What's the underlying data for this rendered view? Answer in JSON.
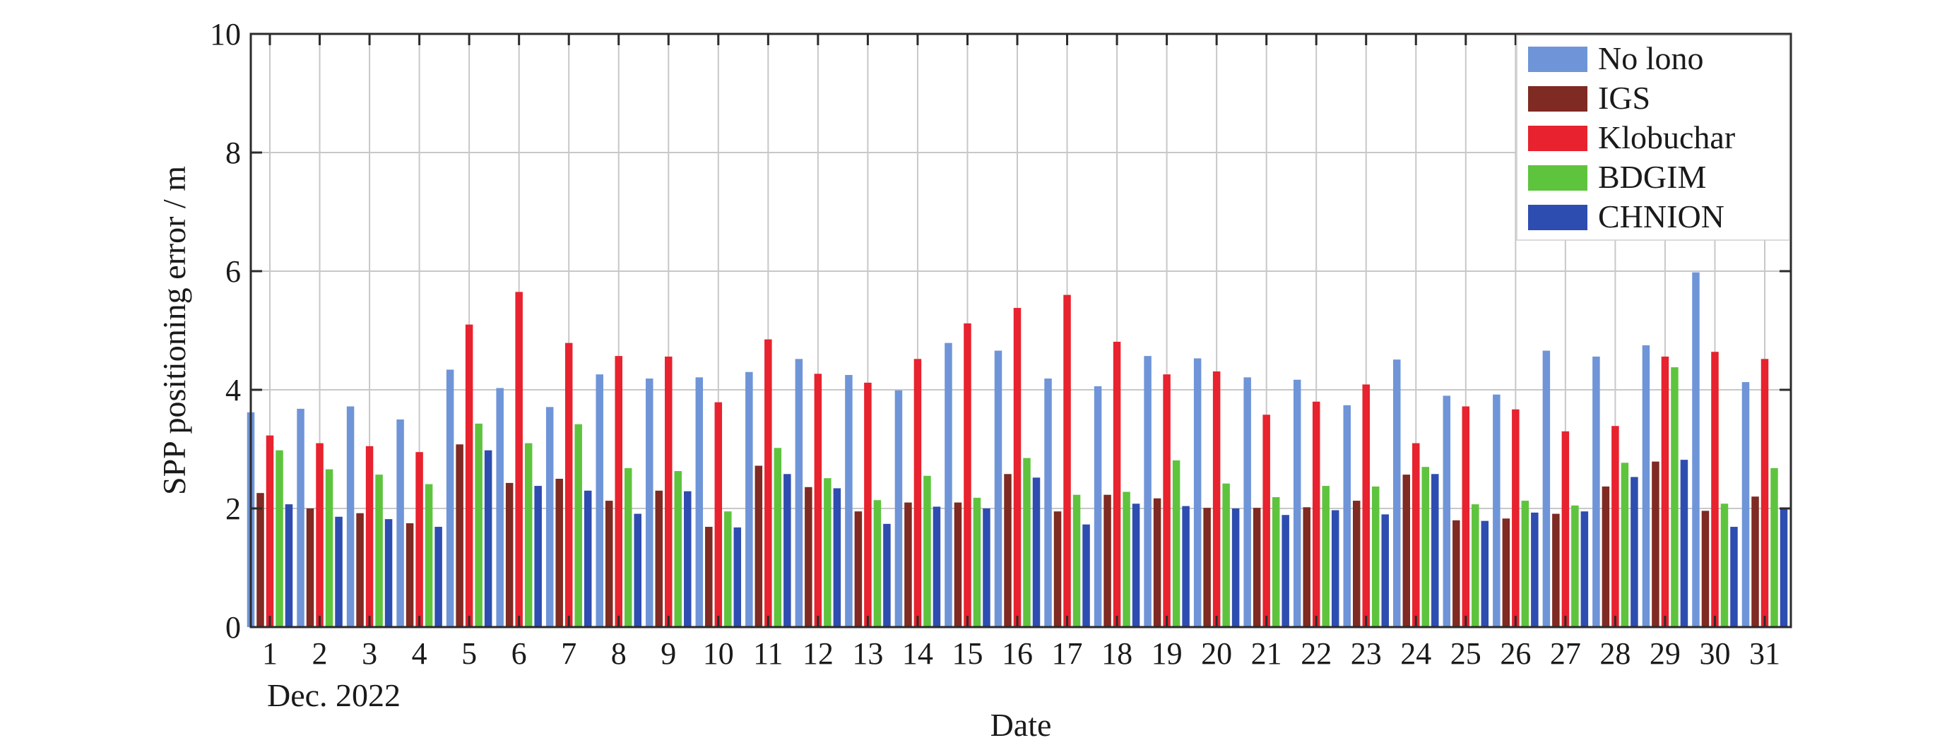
{
  "chart_data": {
    "type": "bar",
    "title": "",
    "xlabel": "Date",
    "ylabel": "SPP positioning error / m",
    "x_sublabel": "Dec. 2022",
    "ylim": [
      0,
      10
    ],
    "yticks": [
      0,
      2,
      4,
      6,
      8,
      10
    ],
    "grid": true,
    "legend_position": "top-right",
    "categories": [
      "1",
      "2",
      "3",
      "4",
      "5",
      "6",
      "7",
      "8",
      "9",
      "10",
      "11",
      "12",
      "13",
      "14",
      "15",
      "16",
      "17",
      "18",
      "19",
      "20",
      "21",
      "22",
      "23",
      "24",
      "25",
      "26",
      "27",
      "28",
      "29",
      "30",
      "31"
    ],
    "series": [
      {
        "name": "No lono",
        "color": "#6f95d8",
        "values": [
          3.62,
          3.68,
          3.72,
          3.5,
          4.34,
          4.03,
          3.71,
          4.26,
          4.19,
          4.21,
          4.3,
          4.52,
          4.25,
          3.99,
          4.79,
          4.66,
          4.19,
          4.06,
          4.57,
          4.53,
          4.21,
          4.17,
          3.74,
          4.51,
          3.9,
          3.92,
          4.66,
          4.56,
          4.75,
          5.98,
          4.13
        ]
      },
      {
        "name": "IGS",
        "color": "#7f2a22",
        "values": [
          2.26,
          2.0,
          1.92,
          1.75,
          3.08,
          2.43,
          2.5,
          2.13,
          2.3,
          1.69,
          2.72,
          2.36,
          1.95,
          2.1,
          2.1,
          2.58,
          1.95,
          2.23,
          2.17,
          2.01,
          2.01,
          2.02,
          2.13,
          2.57,
          1.8,
          1.83,
          1.91,
          2.37,
          2.79,
          1.96,
          2.2
        ]
      },
      {
        "name": "Klobuchar",
        "color": "#e8222e",
        "values": [
          3.23,
          3.1,
          3.05,
          2.95,
          5.1,
          5.65,
          4.79,
          4.57,
          4.56,
          3.79,
          4.85,
          4.27,
          4.12,
          4.52,
          5.12,
          5.38,
          5.6,
          4.81,
          4.26,
          4.31,
          3.58,
          3.8,
          4.09,
          3.1,
          3.72,
          3.67,
          3.3,
          3.39,
          4.56,
          4.64,
          4.52
        ]
      },
      {
        "name": "BDGIM",
        "color": "#5ec43e",
        "values": [
          2.98,
          2.66,
          2.57,
          2.41,
          3.43,
          3.1,
          3.42,
          2.68,
          2.63,
          1.95,
          3.02,
          2.51,
          2.14,
          2.55,
          2.18,
          2.85,
          2.23,
          2.28,
          2.81,
          2.42,
          2.19,
          2.38,
          2.37,
          2.7,
          2.07,
          2.13,
          2.05,
          2.77,
          4.38,
          2.08,
          2.68
        ]
      },
      {
        "name": "CHNION",
        "color": "#2e4db0",
        "values": [
          2.07,
          1.86,
          1.82,
          1.69,
          2.98,
          2.38,
          2.3,
          1.91,
          2.29,
          1.68,
          2.58,
          2.34,
          1.74,
          2.03,
          2.0,
          2.52,
          1.73,
          2.08,
          2.04,
          2.0,
          1.89,
          1.97,
          1.9,
          2.58,
          1.79,
          1.93,
          1.95,
          2.53,
          2.82,
          1.69,
          2.0
        ]
      }
    ]
  }
}
